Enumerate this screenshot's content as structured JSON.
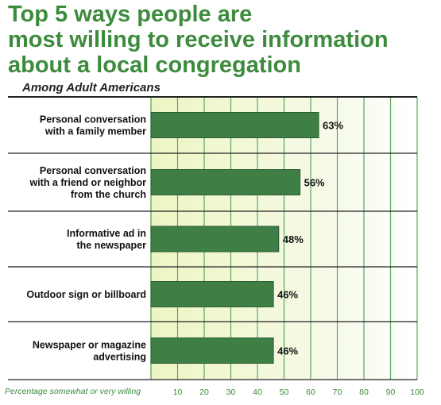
{
  "chart_data": {
    "type": "bar",
    "orientation": "horizontal",
    "title": "Top 5 ways people are most willing to receive information about a local congregation",
    "title_lines": [
      "Top 5 ways people are",
      "most willing to receive information",
      "about a local congregation"
    ],
    "subtitle": "Among Adult  Americans",
    "xlabel": "Percentage somewhat or very willing",
    "categories": [
      [
        "Personal conversation",
        "with a family member"
      ],
      [
        "Personal conversation",
        "with a friend or neighbor",
        "from the church"
      ],
      [
        "Informative ad in",
        "the newspaper"
      ],
      [
        "Outdoor sign or billboard"
      ],
      [
        "Newspaper or magazine",
        "advertising"
      ]
    ],
    "values": [
      63,
      56,
      48,
      46,
      46
    ],
    "value_labels": [
      "63%",
      "56%",
      "48%",
      "46%",
      "46%"
    ],
    "xticks": [
      10,
      20,
      30,
      40,
      50,
      60,
      70,
      80,
      90,
      100
    ],
    "xlim": [
      0,
      100
    ],
    "grid": true,
    "colors": {
      "bar": "#3f7f46",
      "title": "#3d8b3d",
      "grid": "#5aa85a",
      "band_start": "#eef5c4",
      "band_end": "#ffffff"
    }
  }
}
